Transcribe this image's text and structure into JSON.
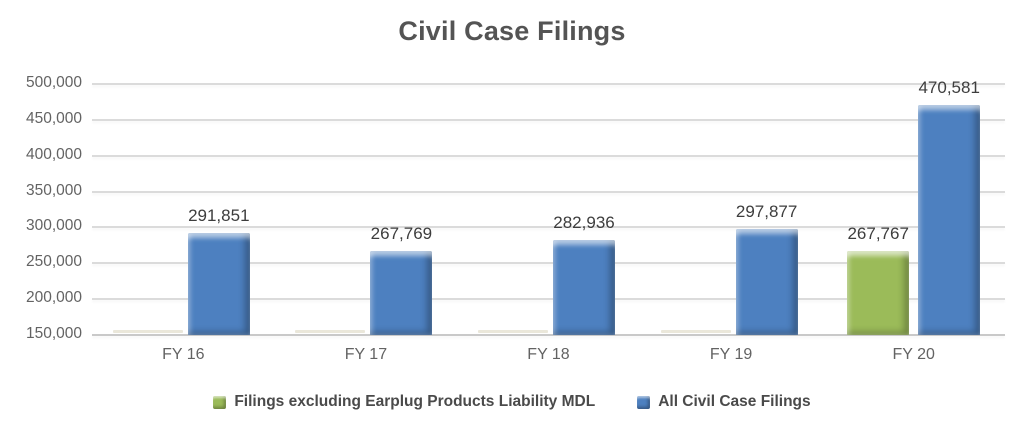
{
  "chart_data": {
    "type": "bar",
    "title": "Civil Case Filings",
    "categories": [
      "FY 16",
      "FY 17",
      "FY 18",
      "FY 19",
      "FY 20"
    ],
    "series": [
      {
        "name": "Filings excluding Earplug Products Liability MDL",
        "color": "#9bbb59",
        "values": [
          null,
          null,
          null,
          null,
          267767
        ],
        "labels": [
          "",
          "",
          "",
          "",
          "267,767"
        ]
      },
      {
        "name": "All Civil Case Filings",
        "color": "#4d80c0",
        "values": [
          291851,
          267769,
          282936,
          297877,
          470581
        ],
        "labels": [
          "291,851",
          "267,769",
          "282,936",
          "297,877",
          "470,581"
        ]
      }
    ],
    "y_axis": {
      "min": 150000,
      "max": 500000,
      "step": 50000,
      "tick_labels": [
        "150,000",
        "200,000",
        "250,000",
        "300,000",
        "350,000",
        "400,000",
        "450,000",
        "500,000"
      ]
    },
    "grid": true,
    "legend_position": "bottom",
    "text_colors": {
      "title": "#545454",
      "axis_labels": "#636363",
      "data_labels": "#3d3d3d",
      "legend": "#4a4a4a"
    }
  }
}
